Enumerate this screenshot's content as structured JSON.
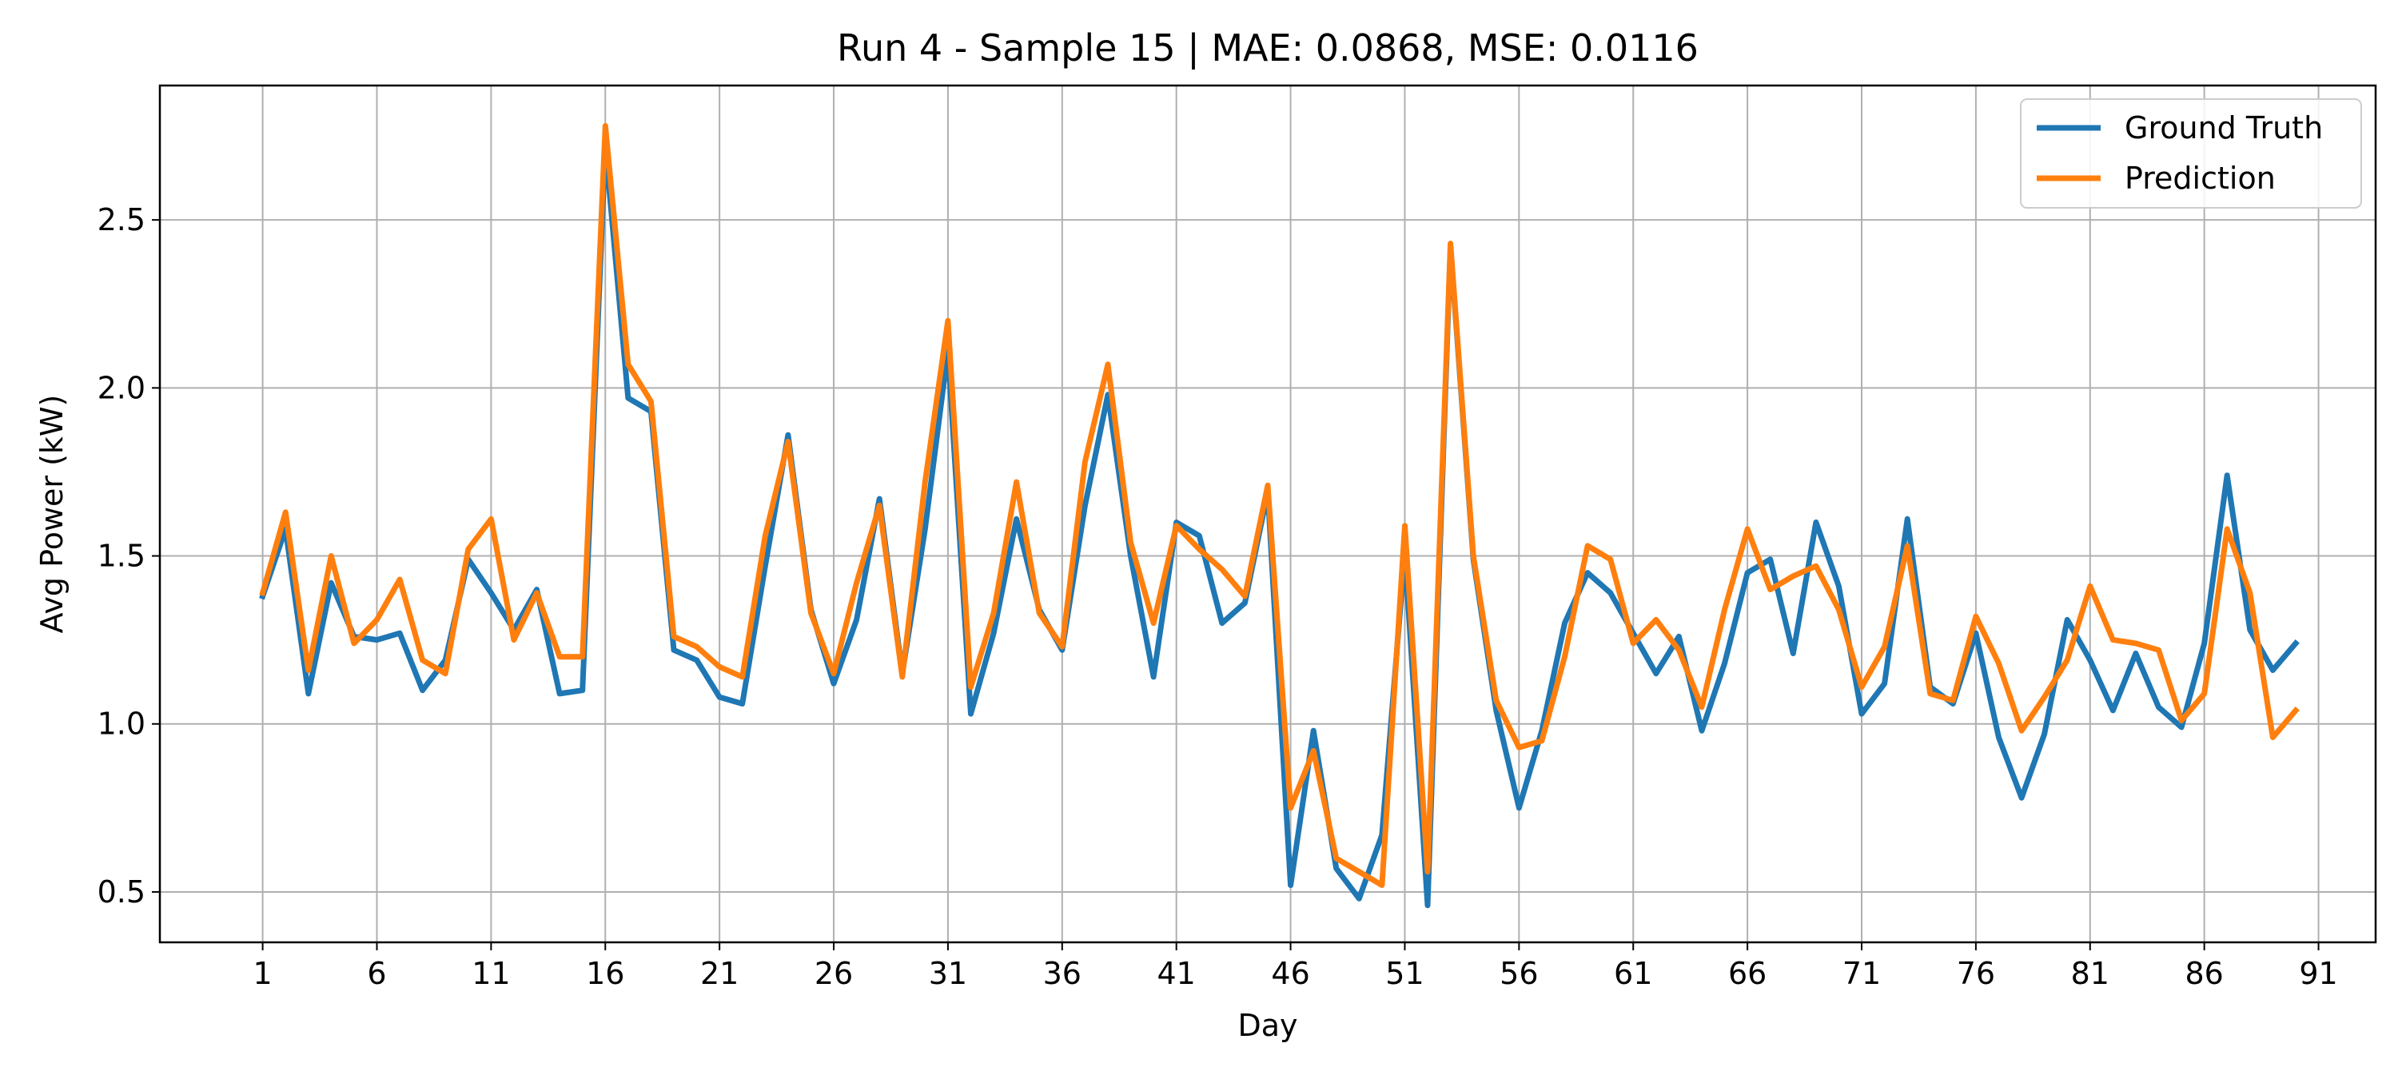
{
  "chart_data": {
    "type": "line",
    "title": "Run 4 - Sample 15 | MAE: 0.0868, MSE: 0.0116",
    "xlabel": "Day",
    "ylabel": "Avg Power (kW)",
    "xlim": [
      -3.5,
      93.5
    ],
    "ylim": [
      0.35,
      2.9
    ],
    "xticks": [
      1,
      6,
      11,
      16,
      21,
      26,
      31,
      36,
      41,
      46,
      51,
      56,
      61,
      66,
      71,
      76,
      81,
      86,
      91
    ],
    "yticks": [
      0.5,
      1.0,
      1.5,
      2.0,
      2.5
    ],
    "ytick_labels": [
      "0.5",
      "1.0",
      "1.5",
      "2.0",
      "2.5"
    ],
    "grid": true,
    "legend_position": "top-right",
    "x": [
      1,
      2,
      3,
      4,
      5,
      6,
      7,
      8,
      9,
      10,
      11,
      12,
      13,
      14,
      15,
      16,
      17,
      18,
      19,
      20,
      21,
      22,
      23,
      24,
      25,
      26,
      27,
      28,
      29,
      30,
      31,
      32,
      33,
      34,
      35,
      36,
      37,
      38,
      39,
      40,
      41,
      42,
      43,
      44,
      45,
      46,
      47,
      48,
      49,
      50,
      51,
      52,
      53,
      54,
      55,
      56,
      57,
      58,
      59,
      60,
      61,
      62,
      63,
      64,
      65,
      66,
      67,
      68,
      69,
      70,
      71,
      72,
      73,
      74,
      75,
      76,
      77,
      78,
      79,
      80,
      81,
      82,
      83,
      84,
      85,
      86,
      87,
      88,
      89,
      90
    ],
    "series": [
      {
        "name": "Ground Truth",
        "color": "#1f77b4",
        "values": [
          1.38,
          1.58,
          1.09,
          1.42,
          1.26,
          1.25,
          1.27,
          1.1,
          1.19,
          1.49,
          1.39,
          1.28,
          1.4,
          1.09,
          1.1,
          2.72,
          1.97,
          1.93,
          1.22,
          1.19,
          1.08,
          1.06,
          1.47,
          1.86,
          1.34,
          1.12,
          1.31,
          1.67,
          1.15,
          1.58,
          2.11,
          1.03,
          1.27,
          1.61,
          1.34,
          1.22,
          1.65,
          1.98,
          1.5,
          1.14,
          1.6,
          1.56,
          1.3,
          1.36,
          1.69,
          0.52,
          0.98,
          0.57,
          0.48,
          0.67,
          1.51,
          0.46,
          2.42,
          1.49,
          1.04,
          0.75,
          0.98,
          1.3,
          1.45,
          1.39,
          1.27,
          1.15,
          1.26,
          0.98,
          1.18,
          1.45,
          1.49,
          1.21,
          1.6,
          1.41,
          1.03,
          1.12,
          1.61,
          1.11,
          1.06,
          1.27,
          0.96,
          0.78,
          0.97,
          1.31,
          1.19,
          1.04,
          1.21,
          1.05,
          0.99,
          1.24,
          1.74,
          1.28,
          1.16,
          1.24
        ]
      },
      {
        "name": "Prediction",
        "color": "#ff7f0e",
        "values": [
          1.39,
          1.63,
          1.16,
          1.5,
          1.24,
          1.31,
          1.43,
          1.19,
          1.15,
          1.52,
          1.61,
          1.25,
          1.39,
          1.2,
          1.2,
          2.78,
          2.07,
          1.96,
          1.26,
          1.23,
          1.17,
          1.14,
          1.56,
          1.84,
          1.33,
          1.15,
          1.42,
          1.65,
          1.14,
          1.72,
          2.2,
          1.11,
          1.33,
          1.72,
          1.33,
          1.23,
          1.78,
          2.07,
          1.54,
          1.3,
          1.59,
          1.52,
          1.46,
          1.38,
          1.71,
          0.75,
          0.92,
          0.6,
          0.56,
          0.52,
          1.59,
          0.56,
          2.43,
          1.5,
          1.07,
          0.93,
          0.95,
          1.2,
          1.53,
          1.49,
          1.24,
          1.31,
          1.22,
          1.05,
          1.34,
          1.58,
          1.4,
          1.44,
          1.47,
          1.34,
          1.11,
          1.23,
          1.53,
          1.09,
          1.07,
          1.32,
          1.18,
          0.98,
          1.08,
          1.19,
          1.41,
          1.25,
          1.24,
          1.22,
          1.01,
          1.09,
          1.58,
          1.39,
          0.96,
          1.04
        ]
      }
    ]
  }
}
